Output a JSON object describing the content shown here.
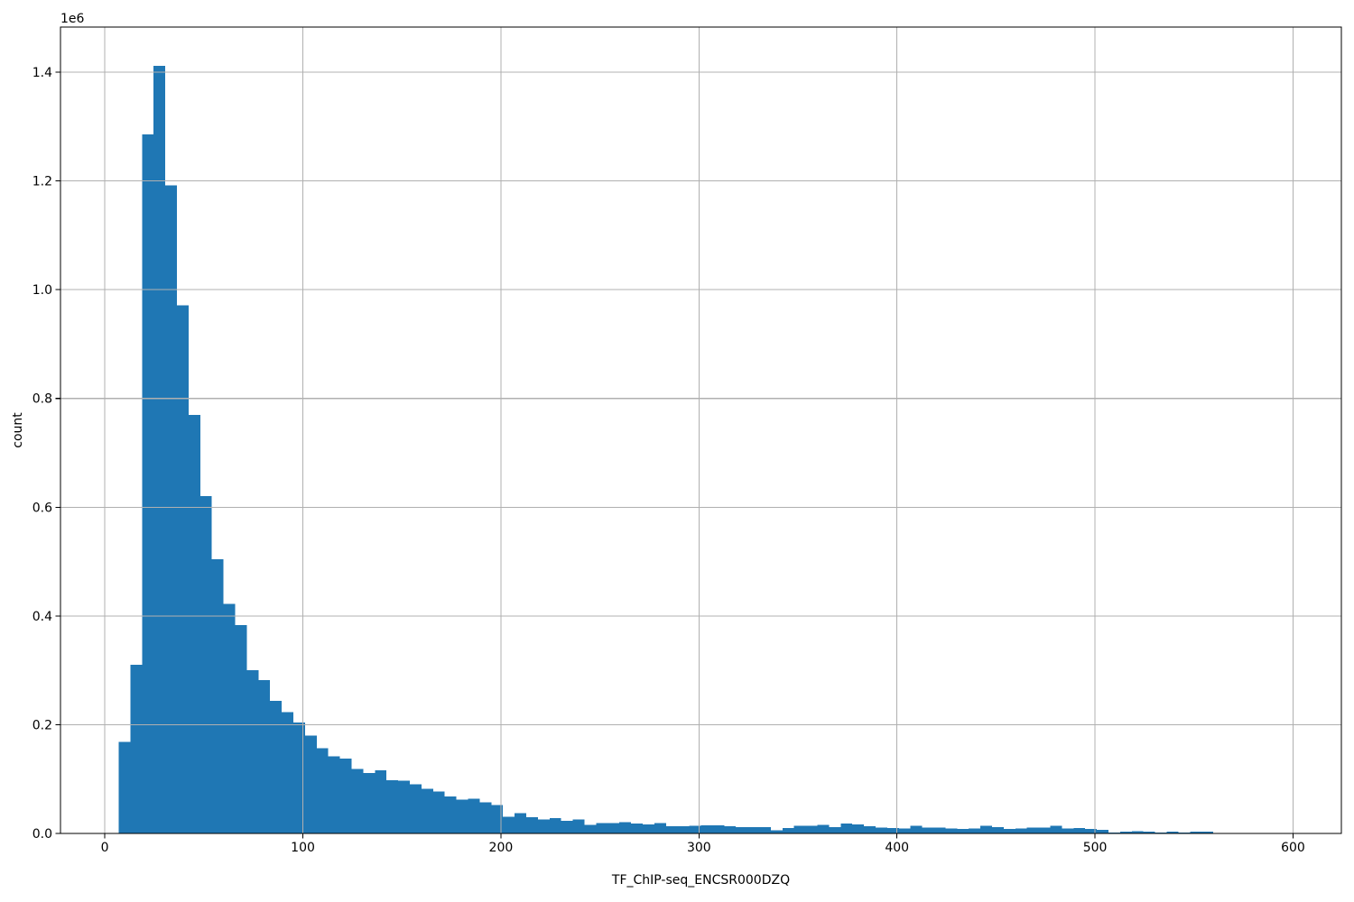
{
  "chart_data": {
    "type": "bar",
    "chart_kind": "histogram",
    "title": "",
    "xlabel": "TF_ChIP-seq_ENCSR000DZQ",
    "ylabel": "count",
    "y_offset_text": "1e6",
    "legend": null,
    "grid": true,
    "bar_color": "#1f77b4",
    "grid_color": "#b0b0b0",
    "spine_color": "#000000",
    "background_color": "#ffffff",
    "xlim": [
      -22.4,
      624.4
    ],
    "ylim": [
      0,
      1483000
    ],
    "x_ticks": [
      0,
      100,
      200,
      300,
      400,
      500,
      600
    ],
    "x_tick_labels": [
      "0",
      "100",
      "200",
      "300",
      "400",
      "500",
      "600"
    ],
    "y_ticks": [
      0,
      200000,
      400000,
      600000,
      800000,
      1000000,
      1200000,
      1400000
    ],
    "y_tick_labels": [
      "0.0",
      "0.2",
      "0.4",
      "0.6",
      "0.8",
      "1.0",
      "1.2",
      "1.4"
    ],
    "bins": {
      "start": 7.0,
      "width": 5.88,
      "count": 100
    },
    "values": [
      168000,
      310000,
      1286000,
      1412000,
      1192000,
      971000,
      770000,
      620000,
      504000,
      422000,
      383000,
      300000,
      282000,
      244000,
      223000,
      204000,
      180000,
      157000,
      142000,
      138000,
      119000,
      111000,
      116000,
      98000,
      97000,
      90000,
      82000,
      77000,
      68000,
      62000,
      64000,
      57000,
      52000,
      31000,
      37000,
      30000,
      26000,
      28000,
      23000,
      26000,
      16000,
      19000,
      19000,
      21000,
      18000,
      17000,
      19000,
      13000,
      13000,
      14000,
      15000,
      15000,
      13000,
      12000,
      12000,
      12000,
      6000,
      10000,
      14000,
      14000,
      16000,
      12000,
      18000,
      17000,
      13000,
      11000,
      10000,
      9500,
      14000,
      11000,
      11000,
      9500,
      8000,
      9000,
      14000,
      12000,
      8000,
      9000,
      11000,
      11000,
      14000,
      9000,
      10000,
      8000,
      7000,
      2000,
      3000,
      4500,
      3000,
      2000,
      3500,
      2000,
      3500,
      3500,
      1000,
      500,
      400,
      300,
      300,
      200
    ]
  }
}
